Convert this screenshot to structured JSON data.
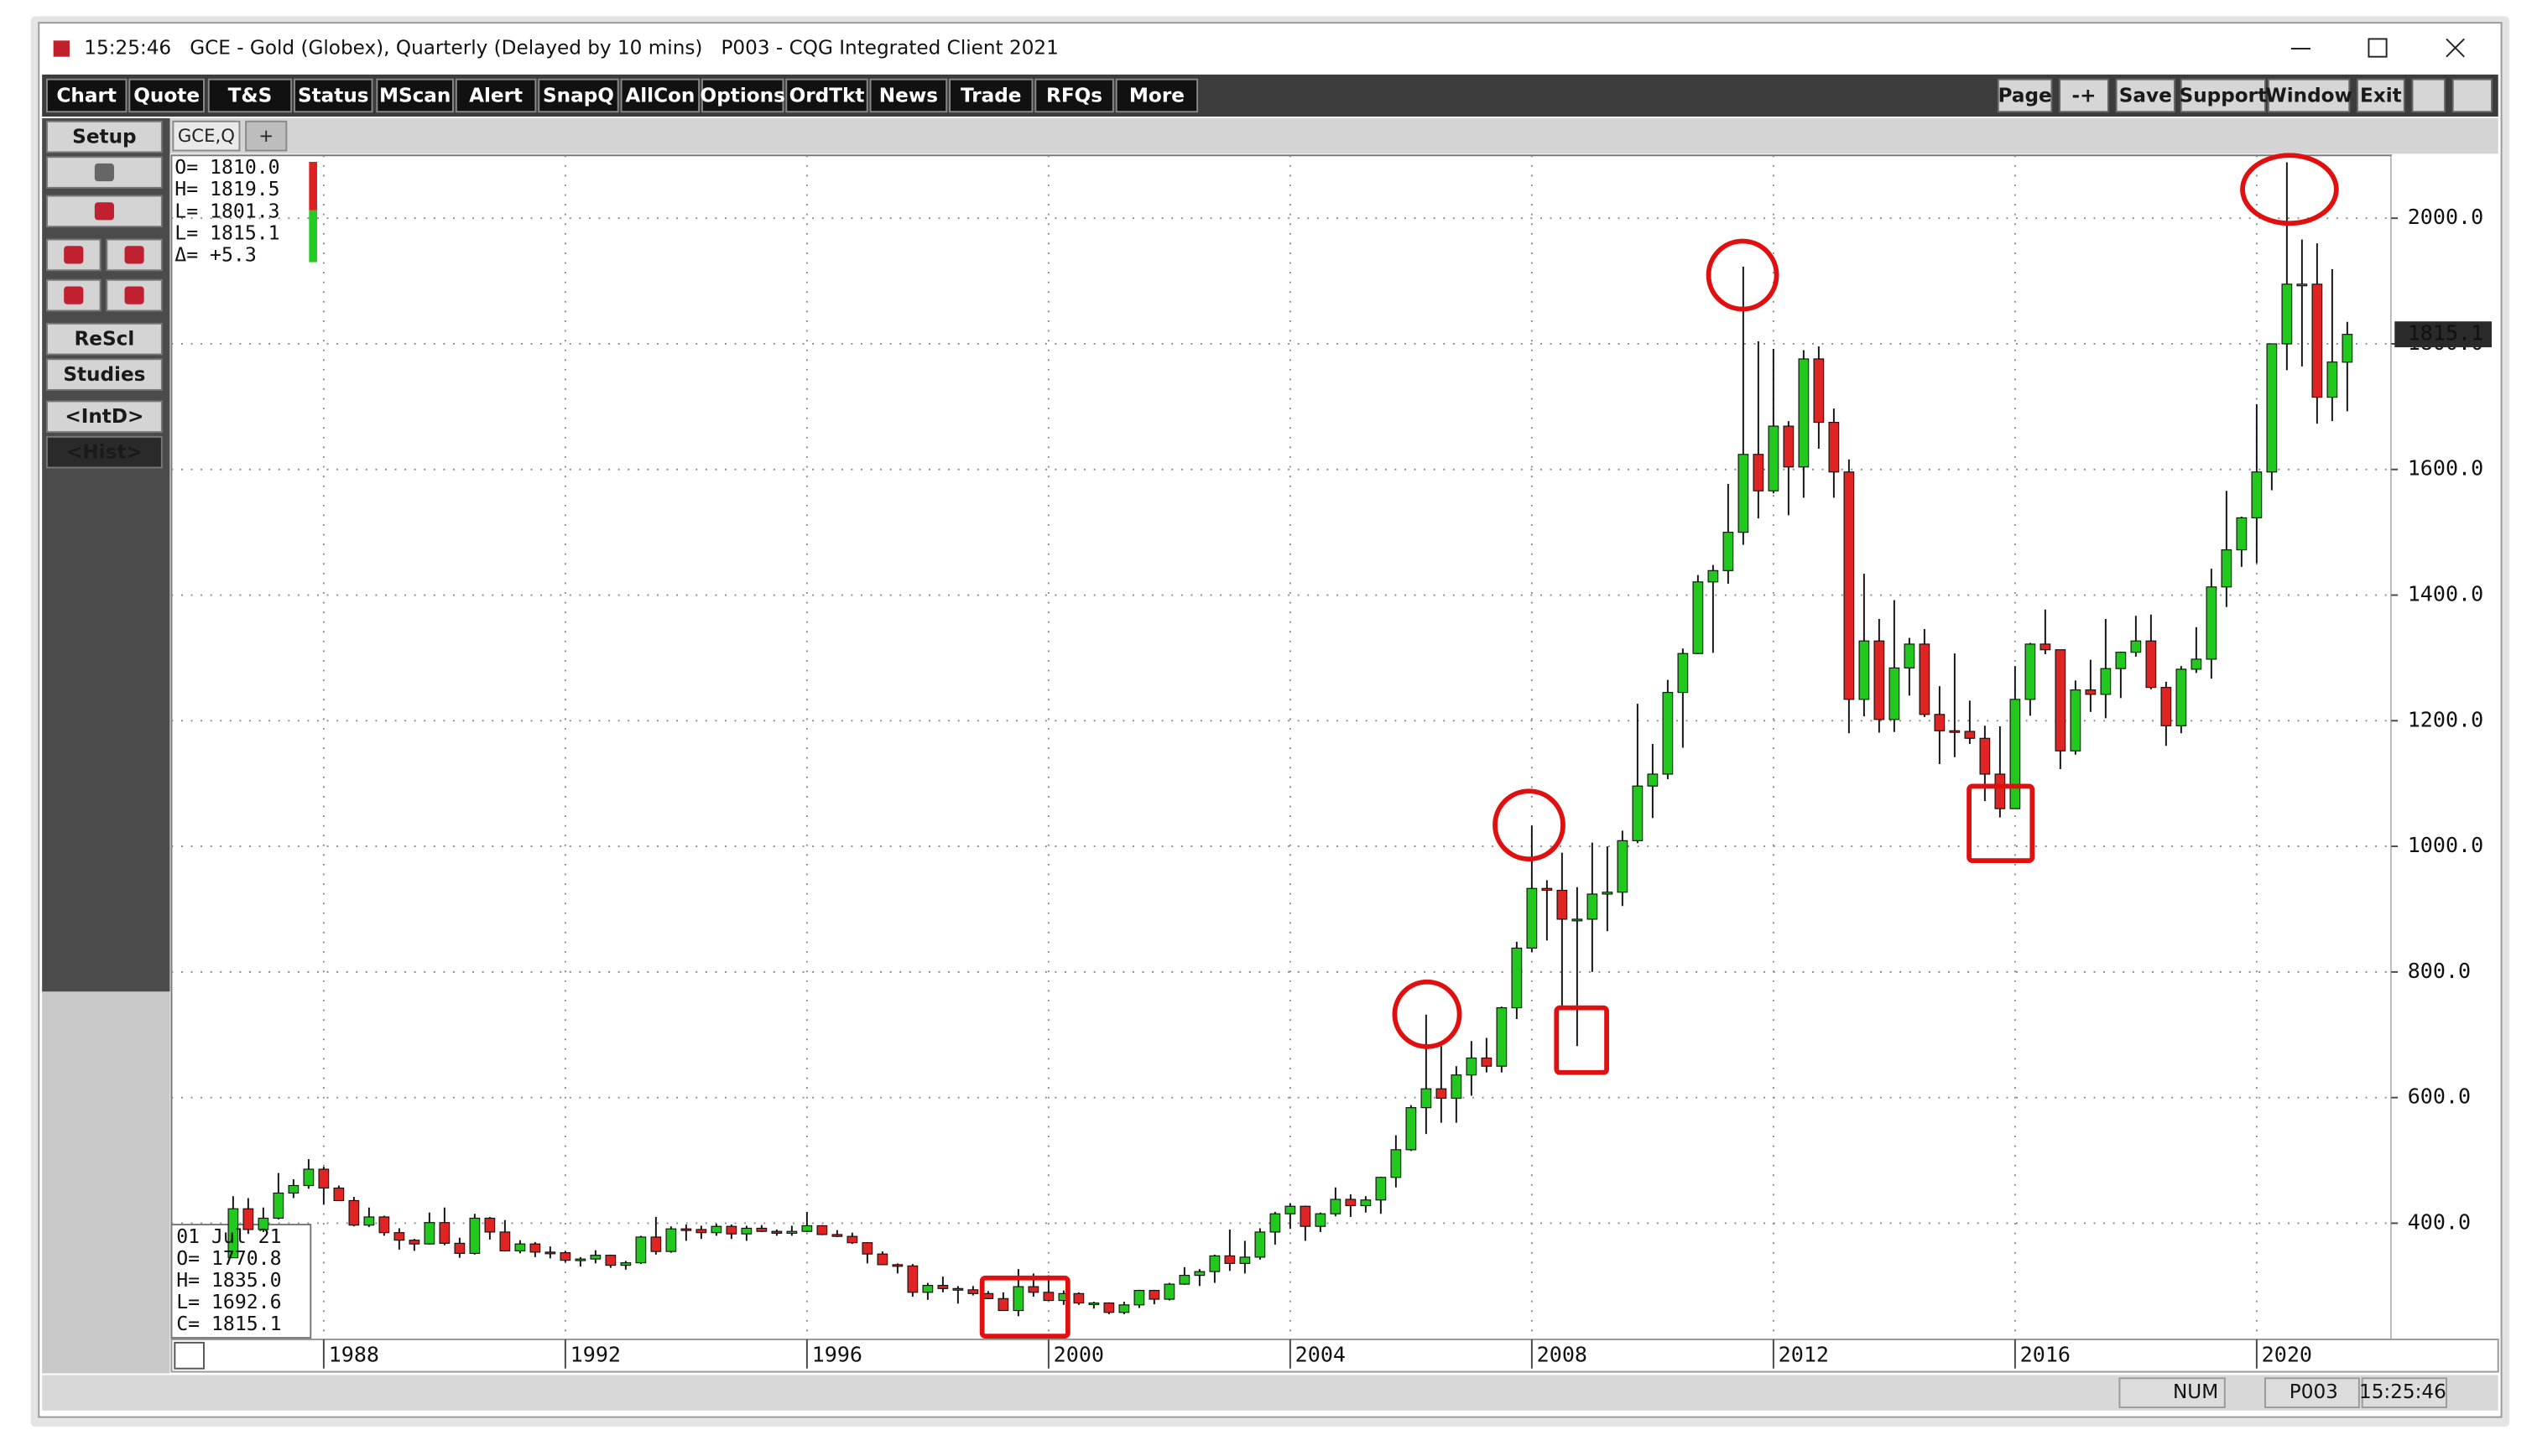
{
  "window": {
    "title": "15:25:46   GCE - Gold (Globex), Quarterly (Delayed by 10 mins)   P003 - CQG Integrated Client 2021"
  },
  "toolbar": {
    "left": [
      "Chart",
      "Quote",
      "T&S",
      "Status",
      "MScan",
      "Alert",
      "SnapQ",
      "AllCon",
      "Options",
      "OrdTkt",
      "News",
      "Trade",
      "RFQs",
      "More"
    ],
    "right": [
      "Page",
      "-+",
      "Save",
      "Support",
      "Window",
      "Exit"
    ]
  },
  "sidebar": [
    "Setup",
    "ReScl",
    "Studies",
    "<IntD>",
    "<Hist>"
  ],
  "tabs": [
    "GCE,Q",
    "+"
  ],
  "readout_top": [
    "O= 1810.0",
    "H= 1819.5",
    "L= 1801.3",
    "L= 1815.1",
    "Δ=   +5.3"
  ],
  "readout_bottom": [
    "01 Jul 21",
    "O= 1770.8",
    "H= 1835.0",
    "L= 1692.6",
    "C= 1815.1"
  ],
  "last_price": "1815.1",
  "status_bar": [
    "NUM",
    "P003",
    "15:25:46"
  ],
  "chart_data": {
    "type": "candlestick",
    "up_color": "#22c81e",
    "down_color": "#e02424",
    "grid": true,
    "xlim": [
      1985.48,
      2022.23
    ],
    "xticks": [
      1988,
      1992,
      1996,
      2000,
      2004,
      2008,
      2012,
      2016,
      2020
    ],
    "ylim": [
      215,
      2100
    ],
    "yticks": [
      {
        "value": 400,
        "label": "400.0"
      },
      {
        "value": 600,
        "label": "600.0"
      },
      {
        "value": 800,
        "label": "800.0"
      },
      {
        "value": 1000,
        "label": "1000.0"
      },
      {
        "value": 1200,
        "label": "1200.0"
      },
      {
        "value": 1400,
        "label": "1400.0"
      },
      {
        "value": 1600,
        "label": "1600.0"
      },
      {
        "value": 1800,
        "label": "1800.0"
      },
      {
        "value": 2000,
        "label": "2000.0"
      }
    ],
    "x": [
      1986.5,
      1986.75,
      1987,
      1987.25,
      1987.5,
      1987.75,
      1988,
      1988.25,
      1988.5,
      1988.75,
      1989,
      1989.25,
      1989.5,
      1989.75,
      1990,
      1990.25,
      1990.5,
      1990.75,
      1991,
      1991.25,
      1991.5,
      1991.75,
      1992,
      1992.25,
      1992.5,
      1992.75,
      1993,
      1993.25,
      1993.5,
      1993.75,
      1994,
      1994.25,
      1994.5,
      1994.75,
      1995,
      1995.25,
      1995.5,
      1995.75,
      1996,
      1996.25,
      1996.5,
      1996.75,
      1997,
      1997.25,
      1997.5,
      1997.75,
      1998,
      1998.25,
      1998.5,
      1998.75,
      1999,
      1999.25,
      1999.5,
      1999.75,
      2000,
      2000.25,
      2000.5,
      2000.75,
      2001,
      2001.25,
      2001.5,
      2001.75,
      2002,
      2002.25,
      2002.5,
      2002.75,
      2003,
      2003.25,
      2003.5,
      2003.75,
      2004,
      2004.25,
      2004.5,
      2004.75,
      2005,
      2005.25,
      2005.5,
      2005.75,
      2006,
      2006.25,
      2006.5,
      2006.75,
      2007,
      2007.25,
      2007.5,
      2007.75,
      2008,
      2008.25,
      2008.5,
      2008.75,
      2009,
      2009.25,
      2009.5,
      2009.75,
      2010,
      2010.25,
      2010.5,
      2010.75,
      2011,
      2011.25,
      2011.5,
      2011.75,
      2012,
      2012.25,
      2012.5,
      2012.75,
      2013,
      2013.25,
      2013.5,
      2013.75,
      2014,
      2014.25,
      2014.5,
      2014.75,
      2015,
      2015.25,
      2015.5,
      2015.75,
      2016,
      2016.25,
      2016.5,
      2016.75,
      2017,
      2017.25,
      2017.5,
      2017.75,
      2018,
      2018.25,
      2018.5,
      2018.75,
      2019,
      2019.25,
      2019.5,
      2019.75,
      2020,
      2020.25,
      2020.5,
      2020.75,
      2021,
      2021.25,
      2021.5
    ],
    "open": [
      345,
      423,
      390,
      408,
      448,
      460,
      486,
      456,
      436,
      397,
      410,
      385,
      373,
      367,
      401,
      368,
      352,
      408,
      386,
      356,
      367,
      354,
      353,
      341,
      343,
      349,
      333,
      337,
      378,
      355,
      391,
      390,
      385,
      395,
      383,
      392,
      387,
      384,
      387,
      396,
      382,
      379,
      369,
      351,
      334,
      332,
      290,
      301,
      296,
      294,
      288,
      280,
      261,
      299,
      290,
      277,
      288,
      273,
      273,
      258,
      270,
      293,
      279,
      303,
      317,
      323,
      348,
      336,
      346,
      386,
      415,
      427,
      395,
      415,
      438,
      428,
      437,
      473,
      517,
      584,
      614,
      599,
      636,
      663,
      650,
      743,
      838,
      933,
      930,
      884,
      884,
      924,
      927,
      1009,
      1096,
      1115,
      1245,
      1307,
      1421,
      1439,
      1500,
      1624,
      1566,
      1669,
      1604,
      1776,
      1675,
      1596,
      1234,
      1327,
      1202,
      1284,
      1322,
      1210,
      1184,
      1183,
      1172,
      1115,
      1060,
      1234,
      1322,
      1313,
      1152,
      1249,
      1242,
      1283,
      1309,
      1327,
      1253,
      1192,
      1282,
      1298,
      1413,
      1472,
      1523,
      1596,
      1800,
      1895,
      1895,
      1715,
      1770.8
    ],
    "high": [
      443,
      440,
      425,
      480,
      470,
      502,
      490,
      460,
      442,
      425,
      412,
      392,
      375,
      417,
      425,
      377,
      415,
      410,
      405,
      373,
      370,
      363,
      356,
      346,
      357,
      350,
      340,
      380,
      410,
      395,
      398,
      396,
      399,
      398,
      396,
      397,
      390,
      396,
      418,
      397,
      389,
      385,
      370,
      355,
      336,
      335,
      305,
      315,
      300,
      300,
      292,
      290,
      327,
      320,
      317,
      293,
      290,
      275,
      274,
      275,
      294,
      294,
      305,
      330,
      327,
      350,
      390,
      372,
      392,
      418,
      432,
      428,
      417,
      457,
      446,
      443,
      474,
      540,
      588,
      732,
      682,
      650,
      690,
      695,
      745,
      848,
      1033,
      946,
      990,
      935,
      1006,
      1000,
      1025,
      1227,
      1163,
      1265,
      1315,
      1432,
      1448,
      1577,
      1923,
      1804,
      1792,
      1677,
      1790,
      1796,
      1697,
      1616,
      1434,
      1362,
      1392,
      1332,
      1346,
      1255,
      1307,
      1232,
      1192,
      1191,
      1287,
      1324,
      1377,
      1313,
      1264,
      1297,
      1362,
      1310,
      1367,
      1369,
      1262,
      1287,
      1349,
      1442,
      1566,
      1525,
      1704,
      1795,
      2089,
      1966,
      1960,
      1919,
      1835.0
    ],
    "low": [
      345,
      383,
      386,
      406,
      440,
      455,
      430,
      436,
      395,
      394,
      380,
      358,
      356,
      366,
      365,
      345,
      350,
      374,
      355,
      352,
      346,
      344,
      338,
      331,
      336,
      329,
      326,
      335,
      350,
      353,
      372,
      375,
      380,
      375,
      372,
      386,
      380,
      380,
      386,
      381,
      378,
      367,
      336,
      335,
      320,
      283,
      278,
      290,
      272,
      285,
      279,
      262,
      252,
      283,
      280,
      270,
      270,
      264,
      255,
      255,
      265,
      271,
      277,
      302,
      300,
      305,
      324,
      320,
      342,
      366,
      391,
      372,
      386,
      411,
      410,
      417,
      415,
      457,
      515,
      542,
      560,
      560,
      603,
      640,
      640,
      725,
      832,
      850,
      740,
      682,
      800,
      865,
      905,
      1005,
      1045,
      1107,
      1157,
      1306,
      1308,
      1418,
      1480,
      1522,
      1562,
      1527,
      1555,
      1633,
      1555,
      1180,
      1207,
      1181,
      1182,
      1240,
      1206,
      1131,
      1142,
      1163,
      1072,
      1046,
      1061,
      1208,
      1306,
      1123,
      1146,
      1214,
      1204,
      1236,
      1302,
      1250,
      1160,
      1180,
      1276,
      1267,
      1381,
      1445,
      1451,
      1567,
      1758,
      1764,
      1673,
      1677,
      1692.6
    ],
    "close": [
      423,
      390,
      408,
      448,
      460,
      486,
      456,
      436,
      397,
      410,
      385,
      373,
      367,
      401,
      368,
      352,
      408,
      386,
      356,
      367,
      354,
      353,
      341,
      343,
      349,
      333,
      337,
      378,
      355,
      391,
      390,
      385,
      395,
      383,
      392,
      387,
      384,
      387,
      396,
      382,
      379,
      369,
      351,
      334,
      332,
      290,
      301,
      296,
      294,
      288,
      280,
      261,
      299,
      290,
      277,
      288,
      273,
      273,
      258,
      270,
      293,
      279,
      303,
      317,
      323,
      348,
      336,
      346,
      386,
      415,
      427,
      395,
      415,
      438,
      428,
      437,
      473,
      517,
      584,
      614,
      599,
      636,
      663,
      650,
      743,
      838,
      933,
      930,
      884,
      884,
      924,
      927,
      1009,
      1096,
      1115,
      1245,
      1307,
      1421,
      1439,
      1500,
      1624,
      1566,
      1669,
      1604,
      1776,
      1675,
      1596,
      1234,
      1327,
      1202,
      1284,
      1322,
      1210,
      1184,
      1183,
      1172,
      1115,
      1060,
      1234,
      1322,
      1313,
      1152,
      1249,
      1242,
      1283,
      1309,
      1327,
      1253,
      1192,
      1282,
      1298,
      1413,
      1472,
      1523,
      1596,
      1800,
      1895,
      1895,
      1715,
      1771,
      1815.1
    ]
  }
}
